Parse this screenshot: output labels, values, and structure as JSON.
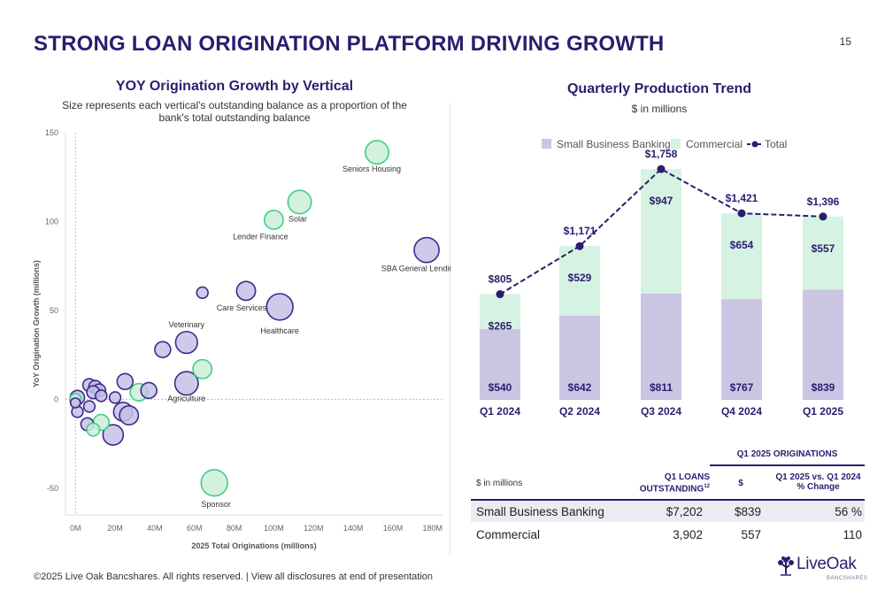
{
  "page": {
    "title": "STRONG LOAN ORIGINATION PLATFORM DRIVING GROWTH",
    "page_number": "15",
    "footer": "©2025 Live Oak Bancshares. All rights reserved.  |  View all disclosures at end of presentation",
    "logo": {
      "name": "LiveOak",
      "sub": "BANCSHARES"
    }
  },
  "colors": {
    "navy": "#2b1d6e",
    "sbb_fill": "#cbc5e4",
    "commercial_fill": "#d6f2e2",
    "bubble_purple_fill": "#c7bfe6",
    "bubble_purple_stroke": "#3b2a8c",
    "bubble_green_fill": "#cdeedb",
    "bubble_green_stroke": "#3fd082"
  },
  "chart_data": [
    {
      "type": "scatter",
      "title": "YOY Origination Growth by Vertical",
      "subtitle": "Size represents each vertical's outstanding balance as a proportion of the bank's total outstanding balance",
      "xlabel": "2025 Total Originations (millions)",
      "ylabel": "YoY Origination Growth (millions)",
      "xlim": [
        -5,
        185
      ],
      "ylim": [
        -65,
        150
      ],
      "x_ticks": [
        "0M",
        "20M",
        "40M",
        "60M",
        "80M",
        "100M",
        "120M",
        "140M",
        "160M",
        "180M"
      ],
      "x_tick_values": [
        0,
        20,
        40,
        60,
        80,
        100,
        120,
        140,
        160,
        180
      ],
      "y_ticks": [
        "-50",
        "0",
        "50",
        "100",
        "150"
      ],
      "y_tick_values": [
        -50,
        0,
        50,
        100,
        150
      ],
      "points": [
        {
          "label": "Seniors Housing",
          "x": 152,
          "y": 139,
          "size": 1.2,
          "group": "commercial"
        },
        {
          "label": "Solar",
          "x": 113,
          "y": 111,
          "size": 1.2,
          "group": "commercial"
        },
        {
          "label": "Lender Finance",
          "x": 100,
          "y": 101,
          "size": 0.9,
          "group": "commercial"
        },
        {
          "label": "SBA General Lending",
          "x": 177,
          "y": 84,
          "size": 1.3,
          "group": "sbb"
        },
        {
          "label": "",
          "x": 64,
          "y": 60,
          "size": 0.4,
          "group": "sbb"
        },
        {
          "label": "Care Services",
          "x": 86,
          "y": 61,
          "size": 0.9,
          "group": "sbb"
        },
        {
          "label": "Healthcare",
          "x": 103,
          "y": 52,
          "size": 1.4,
          "group": "sbb"
        },
        {
          "label": "Veterinary",
          "x": 56,
          "y": 32,
          "size": 1.1,
          "group": "sbb"
        },
        {
          "label": "",
          "x": 44,
          "y": 28,
          "size": 0.7,
          "group": "sbb"
        },
        {
          "label": "",
          "x": 64,
          "y": 17,
          "size": 0.9,
          "group": "commercial"
        },
        {
          "label": "Agriculture",
          "x": 56,
          "y": 9,
          "size": 1.2,
          "group": "sbb"
        },
        {
          "label": "",
          "x": 25,
          "y": 10,
          "size": 0.7,
          "group": "sbb"
        },
        {
          "label": "",
          "x": 37,
          "y": 5,
          "size": 0.7,
          "group": "sbb"
        },
        {
          "label": "",
          "x": 32,
          "y": 4,
          "size": 0.8,
          "group": "commercial"
        },
        {
          "label": "",
          "x": 7,
          "y": 8,
          "size": 0.5,
          "group": "sbb"
        },
        {
          "label": "",
          "x": 10,
          "y": 7,
          "size": 0.5,
          "group": "sbb"
        },
        {
          "label": "",
          "x": 12,
          "y": 5,
          "size": 0.5,
          "group": "sbb"
        },
        {
          "label": "",
          "x": 9,
          "y": 4,
          "size": 0.5,
          "group": "sbb"
        },
        {
          "label": "",
          "x": 13,
          "y": 2,
          "size": 0.4,
          "group": "sbb"
        },
        {
          "label": "",
          "x": 20,
          "y": 1,
          "size": 0.4,
          "group": "sbb"
        },
        {
          "label": "",
          "x": 1,
          "y": 1,
          "size": 0.6,
          "group": "sbb"
        },
        {
          "label": "",
          "x": 0,
          "y": 0,
          "size": 0.4,
          "group": "commercial"
        },
        {
          "label": "",
          "x": 0,
          "y": -2,
          "size": 0.3,
          "group": "sbb"
        },
        {
          "label": "",
          "x": 7,
          "y": -4,
          "size": 0.4,
          "group": "sbb"
        },
        {
          "label": "",
          "x": 1,
          "y": -7,
          "size": 0.4,
          "group": "sbb"
        },
        {
          "label": "",
          "x": 24,
          "y": -7,
          "size": 0.9,
          "group": "sbb"
        },
        {
          "label": "",
          "x": 27,
          "y": -9,
          "size": 0.9,
          "group": "sbb"
        },
        {
          "label": "",
          "x": 13,
          "y": -13,
          "size": 0.7,
          "group": "commercial"
        },
        {
          "label": "",
          "x": 6,
          "y": -14,
          "size": 0.5,
          "group": "sbb"
        },
        {
          "label": "",
          "x": 9,
          "y": -17,
          "size": 0.5,
          "group": "commercial"
        },
        {
          "label": "",
          "x": 19,
          "y": -20,
          "size": 1.0,
          "group": "sbb"
        },
        {
          "label": "Sponsor",
          "x": 70,
          "y": -47,
          "size": 1.4,
          "group": "commercial"
        }
      ],
      "grid": false
    },
    {
      "type": "bar",
      "title": "Quarterly Production Trend",
      "subtitle": "$ in millions",
      "stacked": true,
      "categories": [
        "Q1 2024",
        "Q2 2024",
        "Q3 2024",
        "Q4 2024",
        "Q1 2025"
      ],
      "series": [
        {
          "name": "Small Business Banking",
          "values": [
            540,
            642,
            811,
            767,
            839
          ],
          "labels": [
            "$540",
            "$642",
            "$811",
            "$767",
            "$839"
          ]
        },
        {
          "name": "Commercial",
          "values": [
            265,
            529,
            947,
            654,
            557
          ],
          "labels": [
            "$265",
            "$529",
            "$947",
            "$654",
            "$557"
          ]
        }
      ],
      "total": {
        "name": "Total",
        "values": [
          805,
          1171,
          1758,
          1421,
          1396
        ],
        "labels": [
          "$805",
          "$1,171",
          "$1,758",
          "$1,421",
          "$1,396"
        ]
      },
      "legend": "top",
      "ylim": [
        0,
        1900
      ],
      "grid": false
    },
    {
      "type": "table",
      "header_group": "Q1 2025 ORIGINATIONS",
      "columns": [
        "$ in millions",
        "Q1 LOANS OUTSTANDING",
        "$",
        "Q1 2025 vs. Q1 2024 % Change"
      ],
      "outstanding_superscript": "12",
      "rows": [
        [
          "Small Business Banking",
          "$7,202",
          "$839",
          "56 %"
        ],
        [
          "Commercial",
          "3,902",
          "557",
          "110"
        ]
      ]
    }
  ]
}
